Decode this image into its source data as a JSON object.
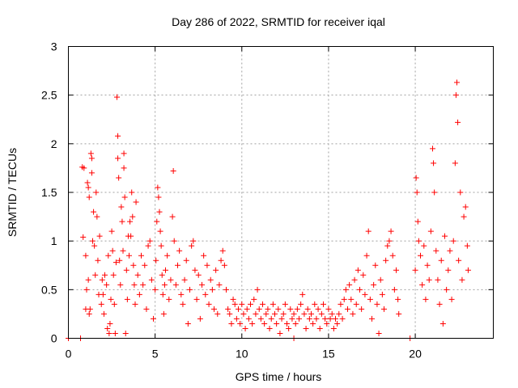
{
  "chart_data": {
    "type": "scatter",
    "title": "Day 286 of 2022, SRMTID for receiver iqal",
    "xlabel": "GPS time / hours",
    "ylabel": "SRMTID / TECUs",
    "xlim": [
      0,
      24.5
    ],
    "ylim": [
      0,
      3
    ],
    "xticks": [
      0,
      5,
      10,
      15,
      20
    ],
    "xtick_labels": [
      "0",
      "5",
      "10",
      "15",
      "20"
    ],
    "yticks": [
      0,
      0.5,
      1,
      1.5,
      2,
      2.5,
      3
    ],
    "ytick_labels": [
      "0",
      "0.5",
      "1",
      "1.5",
      "2",
      "2.5",
      "3"
    ],
    "grid": true,
    "marker": "+",
    "color": "#ff0000",
    "series": [
      {
        "name": "SRMTID",
        "points": [
          [
            0.0,
            0.0
          ],
          [
            0.7,
            0.0
          ],
          [
            13.0,
            0.0
          ],
          [
            19.7,
            0.0
          ],
          [
            0.8,
            1.76
          ],
          [
            0.9,
            1.75
          ],
          [
            0.85,
            1.04
          ],
          [
            1.0,
            0.85
          ],
          [
            1.0,
            0.3
          ],
          [
            1.05,
            0.5
          ],
          [
            1.1,
            1.6
          ],
          [
            1.15,
            1.55
          ],
          [
            1.2,
            1.45
          ],
          [
            1.15,
            0.6
          ],
          [
            1.2,
            0.25
          ],
          [
            1.25,
            0.3
          ],
          [
            1.3,
            1.9
          ],
          [
            1.35,
            1.85
          ],
          [
            1.35,
            1.7
          ],
          [
            1.4,
            1.0
          ],
          [
            1.45,
            1.3
          ],
          [
            1.5,
            0.95
          ],
          [
            1.55,
            0.65
          ],
          [
            1.6,
            1.5
          ],
          [
            1.65,
            1.25
          ],
          [
            1.7,
            0.8
          ],
          [
            1.75,
            0.45
          ],
          [
            1.8,
            1.05
          ],
          [
            1.9,
            0.35
          ],
          [
            1.95,
            0.6
          ],
          [
            2.0,
            0.45
          ],
          [
            2.05,
            0.25
          ],
          [
            2.1,
            0.65
          ],
          [
            2.2,
            0.55
          ],
          [
            2.25,
            0.1
          ],
          [
            2.3,
            0.85
          ],
          [
            2.35,
            0.05
          ],
          [
            2.4,
            0.15
          ],
          [
            2.45,
            0.4
          ],
          [
            2.5,
            1.1
          ],
          [
            2.55,
            0.9
          ],
          [
            2.6,
            0.65
          ],
          [
            2.65,
            0.35
          ],
          [
            2.7,
            0.05
          ],
          [
            2.75,
            0.78
          ],
          [
            2.8,
            2.48
          ],
          [
            2.85,
            2.08
          ],
          [
            2.85,
            1.85
          ],
          [
            2.9,
            1.65
          ],
          [
            2.95,
            0.8
          ],
          [
            3.0,
            0.55
          ],
          [
            3.05,
            1.35
          ],
          [
            3.1,
            1.2
          ],
          [
            3.15,
            0.9
          ],
          [
            3.2,
            1.9
          ],
          [
            3.2,
            1.75
          ],
          [
            3.25,
            1.45
          ],
          [
            3.3,
            0.05
          ],
          [
            3.35,
            0.7
          ],
          [
            3.4,
            0.4
          ],
          [
            3.45,
            1.05
          ],
          [
            3.5,
            0.85
          ],
          [
            3.55,
            1.2
          ],
          [
            3.6,
            1.05
          ],
          [
            3.65,
            1.5
          ],
          [
            3.7,
            1.25
          ],
          [
            3.75,
            0.75
          ],
          [
            3.8,
            0.55
          ],
          [
            3.85,
            0.35
          ],
          [
            3.9,
            1.4
          ],
          [
            4.0,
            0.65
          ],
          [
            4.1,
            0.45
          ],
          [
            4.2,
            0.85
          ],
          [
            4.3,
            0.55
          ],
          [
            4.4,
            0.75
          ],
          [
            4.5,
            0.3
          ],
          [
            4.6,
            0.95
          ],
          [
            4.7,
            1.0
          ],
          [
            4.8,
            0.6
          ],
          [
            4.9,
            0.2
          ],
          [
            5.0,
            0.5
          ],
          [
            5.05,
            0.8
          ],
          [
            5.1,
            1.2
          ],
          [
            5.15,
            1.55
          ],
          [
            5.2,
            1.45
          ],
          [
            5.25,
            1.3
          ],
          [
            5.3,
            1.1
          ],
          [
            5.35,
            0.95
          ],
          [
            5.4,
            0.65
          ],
          [
            5.45,
            0.45
          ],
          [
            5.5,
            0.25
          ],
          [
            5.55,
            0.55
          ],
          [
            5.6,
            0.7
          ],
          [
            5.7,
            0.85
          ],
          [
            5.8,
            0.4
          ],
          [
            5.9,
            0.6
          ],
          [
            6.0,
            1.25
          ],
          [
            6.05,
            1.72
          ],
          [
            6.1,
            1.0
          ],
          [
            6.2,
            0.55
          ],
          [
            6.3,
            0.75
          ],
          [
            6.4,
            0.9
          ],
          [
            6.5,
            0.45
          ],
          [
            6.6,
            0.35
          ],
          [
            6.7,
            0.6
          ],
          [
            6.8,
            0.8
          ],
          [
            6.9,
            0.15
          ],
          [
            7.0,
            0.5
          ],
          [
            7.1,
            0.95
          ],
          [
            7.2,
            1.0
          ],
          [
            7.3,
            0.7
          ],
          [
            7.4,
            0.4
          ],
          [
            7.5,
            0.65
          ],
          [
            7.6,
            0.2
          ],
          [
            7.7,
            0.55
          ],
          [
            7.8,
            0.85
          ],
          [
            7.9,
            0.45
          ],
          [
            8.0,
            0.75
          ],
          [
            8.1,
            0.35
          ],
          [
            8.2,
            0.6
          ],
          [
            8.3,
            0.5
          ],
          [
            8.4,
            0.3
          ],
          [
            8.5,
            0.7
          ],
          [
            8.6,
            0.25
          ],
          [
            8.7,
            0.55
          ],
          [
            8.8,
            0.8
          ],
          [
            8.9,
            0.9
          ],
          [
            9.0,
            0.75
          ],
          [
            9.1,
            0.5
          ],
          [
            9.2,
            0.3
          ],
          [
            9.3,
            0.25
          ],
          [
            9.4,
            0.15
          ],
          [
            9.5,
            0.4
          ],
          [
            9.6,
            0.35
          ],
          [
            9.7,
            0.2
          ],
          [
            9.8,
            0.3
          ],
          [
            9.9,
            0.15
          ],
          [
            10.0,
            0.35
          ],
          [
            10.1,
            0.25
          ],
          [
            10.2,
            0.1
          ],
          [
            10.3,
            0.3
          ],
          [
            10.4,
            0.2
          ],
          [
            10.5,
            0.35
          ],
          [
            10.6,
            0.15
          ],
          [
            10.7,
            0.4
          ],
          [
            10.8,
            0.25
          ],
          [
            10.9,
            0.5
          ],
          [
            11.0,
            0.3
          ],
          [
            11.1,
            0.2
          ],
          [
            11.2,
            0.35
          ],
          [
            11.3,
            0.15
          ],
          [
            11.4,
            0.25
          ],
          [
            11.5,
            0.3
          ],
          [
            11.6,
            0.1
          ],
          [
            11.7,
            0.2
          ],
          [
            11.8,
            0.35
          ],
          [
            11.9,
            0.25
          ],
          [
            12.0,
            0.15
          ],
          [
            12.1,
            0.3
          ],
          [
            12.2,
            0.05
          ],
          [
            12.3,
            0.2
          ],
          [
            12.4,
            0.25
          ],
          [
            12.5,
            0.35
          ],
          [
            12.6,
            0.15
          ],
          [
            12.7,
            0.1
          ],
          [
            12.8,
            0.3
          ],
          [
            12.9,
            0.2
          ],
          [
            13.0,
            0.25
          ],
          [
            13.1,
            0.15
          ],
          [
            13.2,
            0.3
          ],
          [
            13.3,
            0.2
          ],
          [
            13.4,
            0.35
          ],
          [
            13.5,
            0.45
          ],
          [
            13.6,
            0.25
          ],
          [
            13.7,
            0.1
          ],
          [
            13.8,
            0.3
          ],
          [
            13.9,
            0.2
          ],
          [
            14.0,
            0.25
          ],
          [
            14.1,
            0.15
          ],
          [
            14.2,
            0.35
          ],
          [
            14.3,
            0.2
          ],
          [
            14.4,
            0.3
          ],
          [
            14.5,
            0.1
          ],
          [
            14.6,
            0.25
          ],
          [
            14.7,
            0.35
          ],
          [
            14.8,
            0.2
          ],
          [
            14.9,
            0.15
          ],
          [
            15.0,
            0.3
          ],
          [
            15.1,
            0.2
          ],
          [
            15.2,
            0.25
          ],
          [
            15.3,
            0.1
          ],
          [
            15.4,
            0.2
          ],
          [
            15.5,
            0.15
          ],
          [
            15.6,
            0.25
          ],
          [
            15.7,
            0.35
          ],
          [
            15.8,
            0.2
          ],
          [
            15.9,
            0.4
          ],
          [
            16.0,
            0.5
          ],
          [
            16.1,
            0.3
          ],
          [
            16.2,
            0.55
          ],
          [
            16.3,
            0.4
          ],
          [
            16.4,
            0.25
          ],
          [
            16.5,
            0.6
          ],
          [
            16.6,
            0.35
          ],
          [
            16.7,
            0.7
          ],
          [
            16.8,
            0.5
          ],
          [
            16.9,
            0.3
          ],
          [
            17.0,
            0.65
          ],
          [
            17.1,
            0.45
          ],
          [
            17.2,
            0.85
          ],
          [
            17.3,
            1.1
          ],
          [
            17.4,
            0.4
          ],
          [
            17.5,
            0.2
          ],
          [
            17.6,
            0.55
          ],
          [
            17.7,
            0.75
          ],
          [
            17.8,
            0.35
          ],
          [
            17.9,
            0.05
          ],
          [
            18.0,
            0.6
          ],
          [
            18.1,
            0.45
          ],
          [
            18.2,
            0.3
          ],
          [
            18.3,
            0.8
          ],
          [
            18.4,
            0.95
          ],
          [
            18.5,
            1.0
          ],
          [
            18.6,
            1.1
          ],
          [
            18.7,
            0.85
          ],
          [
            18.8,
            0.5
          ],
          [
            18.9,
            0.7
          ],
          [
            19.0,
            0.4
          ],
          [
            19.05,
            0.25
          ],
          [
            20.0,
            0.7
          ],
          [
            20.05,
            1.65
          ],
          [
            20.1,
            1.5
          ],
          [
            20.15,
            1.2
          ],
          [
            20.2,
            1.0
          ],
          [
            20.3,
            0.85
          ],
          [
            20.4,
            0.55
          ],
          [
            20.5,
            0.95
          ],
          [
            20.6,
            0.4
          ],
          [
            20.7,
            0.75
          ],
          [
            20.8,
            0.6
          ],
          [
            20.9,
            1.1
          ],
          [
            21.0,
            1.95
          ],
          [
            21.05,
            1.8
          ],
          [
            21.1,
            1.5
          ],
          [
            21.2,
            0.9
          ],
          [
            21.3,
            0.6
          ],
          [
            21.4,
            0.35
          ],
          [
            21.5,
            0.8
          ],
          [
            21.6,
            0.15
          ],
          [
            21.7,
            1.05
          ],
          [
            21.8,
            0.5
          ],
          [
            21.9,
            0.7
          ],
          [
            22.0,
            0.9
          ],
          [
            22.1,
            0.4
          ],
          [
            22.2,
            1.0
          ],
          [
            22.3,
            1.8
          ],
          [
            22.35,
            2.5
          ],
          [
            22.4,
            2.63
          ],
          [
            22.45,
            2.22
          ],
          [
            22.5,
            0.8
          ],
          [
            22.6,
            1.5
          ],
          [
            22.7,
            0.6
          ],
          [
            22.8,
            1.25
          ],
          [
            22.9,
            1.35
          ],
          [
            23.0,
            0.95
          ],
          [
            23.05,
            0.7
          ]
        ]
      }
    ]
  }
}
